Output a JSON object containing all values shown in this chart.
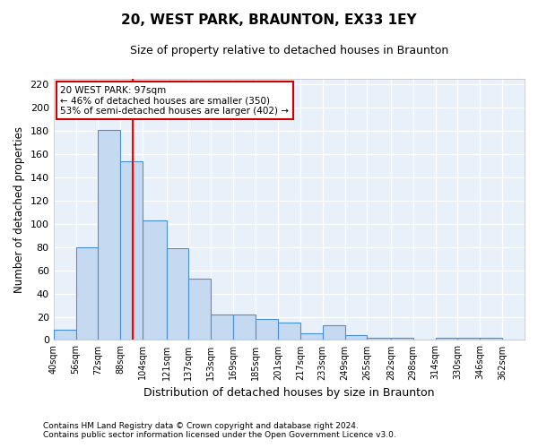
{
  "title": "20, WEST PARK, BRAUNTON, EX33 1EY",
  "subtitle": "Size of property relative to detached houses in Braunton",
  "xlabel": "Distribution of detached houses by size in Braunton",
  "ylabel": "Number of detached properties",
  "bin_labels": [
    "40sqm",
    "56sqm",
    "72sqm",
    "88sqm",
    "104sqm",
    "121sqm",
    "137sqm",
    "153sqm",
    "169sqm",
    "185sqm",
    "201sqm",
    "217sqm",
    "233sqm",
    "249sqm",
    "265sqm",
    "282sqm",
    "298sqm",
    "314sqm",
    "330sqm",
    "346sqm",
    "362sqm"
  ],
  "bin_edges": [
    40,
    56,
    72,
    88,
    104,
    121,
    137,
    153,
    169,
    185,
    201,
    217,
    233,
    249,
    265,
    282,
    298,
    314,
    330,
    346,
    362,
    378
  ],
  "bar_heights": [
    9,
    80,
    181,
    154,
    103,
    79,
    53,
    22,
    22,
    18,
    15,
    6,
    13,
    4,
    2,
    2,
    0,
    2,
    2,
    2,
    0
  ],
  "bar_color": "#c5d9f0",
  "bar_edge_color": "#4a90d9",
  "bg_color": "#e8f0fa",
  "grid_color": "#ffffff",
  "red_line_x": 97,
  "annotation_text": "20 WEST PARK: 97sqm\n← 46% of detached houses are smaller (350)\n53% of semi-detached houses are larger (402) →",
  "annotation_box_color": "#ffffff",
  "annotation_box_edge_color": "#cc0000",
  "footer_line1": "Contains HM Land Registry data © Crown copyright and database right 2024.",
  "footer_line2": "Contains public sector information licensed under the Open Government Licence v3.0.",
  "ylim": [
    0,
    225
  ],
  "yticks": [
    0,
    20,
    40,
    60,
    80,
    100,
    120,
    140,
    160,
    180,
    200,
    220
  ]
}
